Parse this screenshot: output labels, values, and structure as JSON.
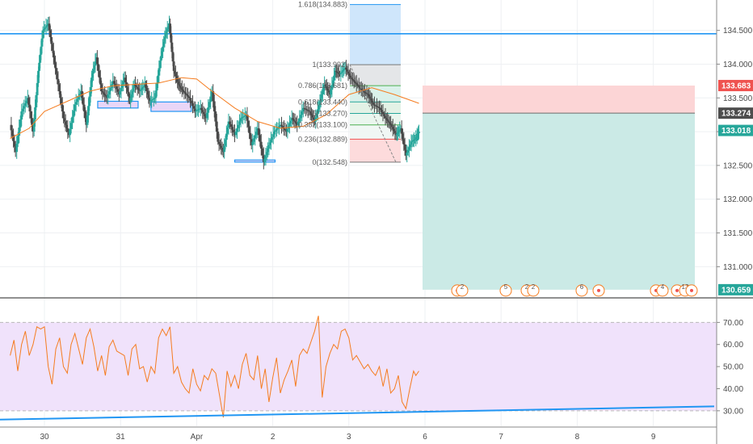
{
  "colors": {
    "up": "#26a69a",
    "down": "#4a4a4a",
    "ema": "#f57c1f",
    "trendline": "#2196f3",
    "rsi_line": "#f57c1f",
    "rsi_band": "#f0e2fb",
    "stop_zone": "#fcd5d6",
    "target_zone": "#cbeae6",
    "fib_top_zone": "#cfe6fb",
    "price_red": "#ef5350",
    "price_grey": "#4d4d4d",
    "price_teal": "#26a69a"
  },
  "price_axis": {
    "ticks": [
      "134.500",
      "134.000",
      "133.500",
      "133.000",
      "132.500",
      "132.000",
      "131.500",
      "131.000"
    ],
    "tick_values": [
      134.5,
      134.0,
      133.5,
      133.0,
      132.5,
      132.0,
      131.5,
      131.0
    ],
    "range": [
      130.55,
      134.95
    ]
  },
  "price_tags": [
    {
      "label": "133.683",
      "value": 133.683,
      "color": "#ef5350"
    },
    {
      "label": "133.274",
      "value": 133.274,
      "color": "#4d4d4d"
    },
    {
      "label": "133.018",
      "value": 133.018,
      "color": "#26a69a"
    },
    {
      "label": "130.659",
      "value": 130.659,
      "color": "#26a69a"
    }
  ],
  "rsi_axis": {
    "ticks": [
      "70.00",
      "60.00",
      "50.00",
      "40.00",
      "30.00"
    ],
    "tick_values": [
      70,
      60,
      50,
      40,
      30
    ],
    "range": [
      23,
      80
    ]
  },
  "time_axis": {
    "labels": [
      "30",
      "31",
      "Apr",
      "2",
      "3",
      "6",
      "7",
      "8",
      "9"
    ],
    "day_index": [
      0,
      1,
      2,
      3,
      4,
      5,
      6,
      7,
      8
    ]
  },
  "fib_labels": [
    {
      "label": "1.618(134.883)",
      "value": 134.883
    },
    {
      "label": "1(133.992)",
      "value": 133.992
    },
    {
      "label": "0.786(133.681)",
      "value": 133.681
    },
    {
      "label": "0.618(133.440)",
      "value": 133.44
    },
    {
      "label": "0.5(133.270)",
      "value": 133.27
    },
    {
      "label": "0.382(133.100)",
      "value": 133.1
    },
    {
      "label": "0.236(132.889)",
      "value": 132.889
    },
    {
      "label": "0(132.548)",
      "value": 132.548
    }
  ],
  "event_markers": [
    "2",
    "5",
    "2",
    "2",
    "6",
    "4",
    "13"
  ],
  "chart_data": {
    "type": "candlestick",
    "horizontal_levels": [
      134.45
    ],
    "position": {
      "entry": 133.274,
      "stop": 133.683,
      "target": 130.659
    },
    "fibonacci": {
      "from": 132.548,
      "to": 133.992
    },
    "support_zones": [
      {
        "day": 0.7,
        "low": 133.35,
        "high": 133.45
      },
      {
        "day": 1.4,
        "low": 133.3,
        "high": 133.44
      },
      {
        "day": 2.5,
        "low": 132.55,
        "high": 132.58
      }
    ],
    "price_series": [
      [
        -0.45,
        133.1
      ],
      [
        -0.38,
        132.7
      ],
      [
        -0.3,
        133.3
      ],
      [
        -0.22,
        133.5
      ],
      [
        -0.15,
        133.0
      ],
      [
        -0.08,
        133.9
      ],
      [
        -0.02,
        134.5
      ],
      [
        0.05,
        134.6
      ],
      [
        0.12,
        134.1
      ],
      [
        0.18,
        133.7
      ],
      [
        0.25,
        133.2
      ],
      [
        0.32,
        132.95
      ],
      [
        0.4,
        133.4
      ],
      [
        0.48,
        133.6
      ],
      [
        0.55,
        133.1
      ],
      [
        0.62,
        133.8
      ],
      [
        0.68,
        134.1
      ],
      [
        0.75,
        133.6
      ],
      [
        0.82,
        133.5
      ],
      [
        0.9,
        133.75
      ],
      [
        0.98,
        133.55
      ],
      [
        1.05,
        133.8
      ],
      [
        1.12,
        133.45
      ],
      [
        1.18,
        133.7
      ],
      [
        1.25,
        133.6
      ],
      [
        1.32,
        133.7
      ],
      [
        1.38,
        133.45
      ],
      [
        1.45,
        133.5
      ],
      [
        1.52,
        134.05
      ],
      [
        1.58,
        134.4
      ],
      [
        1.64,
        134.6
      ],
      [
        1.7,
        133.9
      ],
      [
        1.76,
        133.7
      ],
      [
        1.82,
        133.6
      ],
      [
        1.9,
        133.5
      ],
      [
        1.98,
        133.3
      ],
      [
        2.05,
        133.35
      ],
      [
        2.12,
        133.2
      ],
      [
        2.2,
        133.6
      ],
      [
        2.28,
        132.85
      ],
      [
        2.35,
        132.7
      ],
      [
        2.42,
        133.15
      ],
      [
        2.5,
        132.95
      ],
      [
        2.58,
        133.2
      ],
      [
        2.65,
        133.25
      ],
      [
        2.72,
        132.8
      ],
      [
        2.8,
        133.05
      ],
      [
        2.88,
        132.55
      ],
      [
        2.95,
        132.8
      ],
      [
        3.02,
        133.0
      ],
      [
        3.1,
        133.1
      ],
      [
        3.18,
        133.0
      ],
      [
        3.25,
        133.2
      ],
      [
        3.32,
        133.1
      ],
      [
        3.4,
        133.35
      ],
      [
        3.48,
        133.3
      ],
      [
        3.55,
        133.15
      ],
      [
        3.62,
        133.45
      ],
      [
        3.68,
        133.7
      ],
      [
        3.75,
        133.55
      ],
      [
        3.82,
        133.9
      ],
      [
        3.88,
        133.85
      ],
      [
        3.95,
        133.95
      ],
      [
        4.02,
        133.8
      ],
      [
        4.1,
        133.7
      ],
      [
        4.18,
        133.6
      ],
      [
        4.25,
        133.55
      ],
      [
        4.32,
        133.4
      ],
      [
        4.4,
        133.35
      ],
      [
        4.48,
        133.2
      ],
      [
        4.55,
        133.1
      ],
      [
        4.62,
        132.95
      ],
      [
        4.68,
        133.05
      ],
      [
        4.75,
        132.65
      ],
      [
        4.82,
        132.85
      ],
      [
        4.88,
        132.9
      ],
      [
        4.92,
        133.0
      ]
    ],
    "ema_series": [
      [
        -0.45,
        132.9
      ],
      [
        -0.2,
        133.05
      ],
      [
        0.0,
        133.3
      ],
      [
        0.3,
        133.45
      ],
      [
        0.6,
        133.6
      ],
      [
        0.9,
        133.68
      ],
      [
        1.2,
        133.7
      ],
      [
        1.5,
        133.72
      ],
      [
        1.8,
        133.8
      ],
      [
        2.0,
        133.78
      ],
      [
        2.2,
        133.6
      ],
      [
        2.5,
        133.35
      ],
      [
        2.8,
        133.15
      ],
      [
        3.1,
        133.05
      ],
      [
        3.4,
        133.08
      ],
      [
        3.7,
        133.25
      ],
      [
        4.0,
        133.55
      ],
      [
        4.3,
        133.65
      ],
      [
        4.6,
        133.55
      ],
      [
        4.92,
        133.42
      ]
    ],
    "rsi_series": [
      [
        -0.45,
        55
      ],
      [
        -0.4,
        62
      ],
      [
        -0.35,
        48
      ],
      [
        -0.3,
        60
      ],
      [
        -0.25,
        66
      ],
      [
        -0.2,
        55
      ],
      [
        -0.15,
        60
      ],
      [
        -0.1,
        68
      ],
      [
        -0.05,
        67
      ],
      [
        0.0,
        68
      ],
      [
        0.05,
        50
      ],
      [
        0.1,
        42
      ],
      [
        0.15,
        58
      ],
      [
        0.2,
        63
      ],
      [
        0.25,
        50
      ],
      [
        0.3,
        47
      ],
      [
        0.35,
        60
      ],
      [
        0.4,
        65
      ],
      [
        0.45,
        58
      ],
      [
        0.5,
        51
      ],
      [
        0.55,
        63
      ],
      [
        0.6,
        67
      ],
      [
        0.65,
        59
      ],
      [
        0.7,
        48
      ],
      [
        0.75,
        55
      ],
      [
        0.8,
        46
      ],
      [
        0.85,
        59
      ],
      [
        0.9,
        62
      ],
      [
        0.95,
        57
      ],
      [
        1.0,
        56
      ],
      [
        1.05,
        55
      ],
      [
        1.1,
        46
      ],
      [
        1.15,
        58
      ],
      [
        1.2,
        60
      ],
      [
        1.25,
        49
      ],
      [
        1.3,
        50
      ],
      [
        1.35,
        43
      ],
      [
        1.4,
        50
      ],
      [
        1.45,
        47
      ],
      [
        1.5,
        63
      ],
      [
        1.55,
        67
      ],
      [
        1.6,
        64
      ],
      [
        1.65,
        68
      ],
      [
        1.7,
        47
      ],
      [
        1.75,
        50
      ],
      [
        1.8,
        43
      ],
      [
        1.85,
        40
      ],
      [
        1.9,
        38
      ],
      [
        1.95,
        49
      ],
      [
        2.0,
        42
      ],
      [
        2.05,
        39
      ],
      [
        2.1,
        46
      ],
      [
        2.15,
        44
      ],
      [
        2.2,
        49
      ],
      [
        2.25,
        47
      ],
      [
        2.3,
        37
      ],
      [
        2.35,
        27
      ],
      [
        2.4,
        48
      ],
      [
        2.45,
        41
      ],
      [
        2.5,
        46
      ],
      [
        2.55,
        40
      ],
      [
        2.6,
        51
      ],
      [
        2.65,
        56
      ],
      [
        2.7,
        46
      ],
      [
        2.75,
        44
      ],
      [
        2.8,
        55
      ],
      [
        2.85,
        40
      ],
      [
        2.9,
        49
      ],
      [
        2.95,
        34
      ],
      [
        3.0,
        45
      ],
      [
        3.05,
        54
      ],
      [
        3.1,
        38
      ],
      [
        3.15,
        44
      ],
      [
        3.2,
        48
      ],
      [
        3.25,
        53
      ],
      [
        3.3,
        41
      ],
      [
        3.35,
        55
      ],
      [
        3.4,
        58
      ],
      [
        3.45,
        56
      ],
      [
        3.5,
        61
      ],
      [
        3.55,
        66
      ],
      [
        3.6,
        73
      ],
      [
        3.65,
        36
      ],
      [
        3.7,
        50
      ],
      [
        3.75,
        56
      ],
      [
        3.8,
        60
      ],
      [
        3.85,
        58
      ],
      [
        3.9,
        66
      ],
      [
        3.95,
        67
      ],
      [
        4.0,
        63
      ],
      [
        4.05,
        53
      ],
      [
        4.1,
        55
      ],
      [
        4.15,
        52
      ],
      [
        4.2,
        49
      ],
      [
        4.25,
        51
      ],
      [
        4.3,
        48
      ],
      [
        4.35,
        46
      ],
      [
        4.4,
        50
      ],
      [
        4.45,
        41
      ],
      [
        4.5,
        49
      ],
      [
        4.55,
        38
      ],
      [
        4.6,
        40
      ],
      [
        4.65,
        46
      ],
      [
        4.7,
        34
      ],
      [
        4.75,
        31
      ],
      [
        4.8,
        40
      ],
      [
        4.85,
        48
      ],
      [
        4.88,
        46
      ],
      [
        4.92,
        48
      ]
    ],
    "rsi_trendline": [
      [
        -0.6,
        26
      ],
      [
        8.8,
        32
      ]
    ]
  }
}
